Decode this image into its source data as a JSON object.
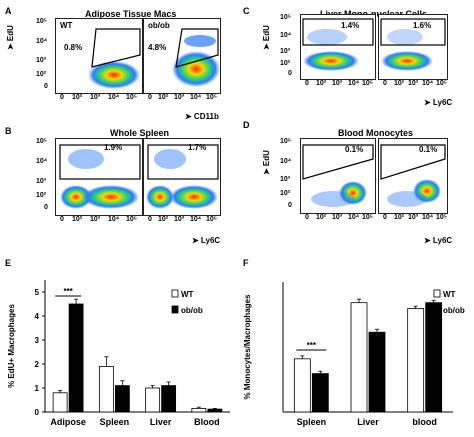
{
  "panels": {
    "A": {
      "letter": "A",
      "title": "Adipose Tissue Macs",
      "ylabel": "➤ EdU",
      "xlabel": "➤ CD11b",
      "left_label": "WT",
      "right_label": "ob/ob",
      "left_pct": "0.8%",
      "right_pct": "4.8%",
      "yticks": [
        "10⁵",
        "10⁴",
        "10³",
        "10²",
        "0"
      ],
      "xticks": [
        "0",
        "10²",
        "10³",
        "10⁴",
        "10⁵"
      ]
    },
    "B": {
      "letter": "B",
      "title": "Whole Spleen",
      "xlabel": "➤ Ly6C",
      "left_pct": "1.9%",
      "right_pct": "1.7%",
      "yticks": [
        "10⁵",
        "10⁴",
        "10³",
        "10²",
        "0"
      ],
      "xticks": [
        "0",
        "10²",
        "10³",
        "10⁴",
        "10⁵"
      ]
    },
    "C": {
      "letter": "C",
      "title": "Liver Mono-nuclear Cells",
      "ylabel": "➤ EdU",
      "xlabel": "➤ Ly6C",
      "left_pct": "1.4%",
      "right_pct": "1.6%",
      "yticks": [
        "10⁵",
        "10⁴",
        "10³",
        "10²",
        "0"
      ],
      "xticks": [
        "0",
        "10²",
        "10³",
        "10⁴",
        "10⁵"
      ]
    },
    "D": {
      "letter": "D",
      "title": "Blood Monocytes",
      "ylabel": "➤ EdU",
      "xlabel": "➤ Ly6C",
      "left_pct": "0.1%",
      "right_pct": "0.1%",
      "yticks": [
        "10⁵",
        "10⁴",
        "10³",
        "10²",
        "0"
      ],
      "xticks": [
        "0",
        "10²",
        "10³",
        "10⁴",
        "10⁵"
      ]
    }
  },
  "chart_data": [
    {
      "panel": "E",
      "type": "bar",
      "ylabel": "% EdU+ Macrophages",
      "categories": [
        "Adipose",
        "Spleen",
        "Liver",
        "Blood"
      ],
      "yticks": [
        "0",
        "1",
        "2",
        "3",
        "4",
        "5"
      ],
      "ylim": [
        0,
        5.5
      ],
      "series": [
        {
          "name": "WT",
          "color": "#ffffff",
          "values": [
            0.8,
            1.9,
            1.0,
            0.15
          ],
          "errors": [
            0.1,
            0.4,
            0.1,
            0.05
          ]
        },
        {
          "name": "ob/ob",
          "color": "#000000",
          "values": [
            4.5,
            1.1,
            1.1,
            0.12
          ],
          "errors": [
            0.2,
            0.2,
            0.15,
            0.03
          ]
        }
      ],
      "significance": "***",
      "legend_position": "top-right"
    },
    {
      "panel": "F",
      "type": "bar",
      "ylabel": "% Monocytes/Macrophages",
      "categories": [
        "Spleen",
        "Liver",
        "blood"
      ],
      "yticks": [],
      "ylim": [
        0,
        22
      ],
      "series": [
        {
          "name": "WT",
          "color": "#ffffff",
          "values": [
            9,
            18.5,
            17.5
          ],
          "errors": [
            0.5,
            0.6,
            0.4
          ]
        },
        {
          "name": "ob/ob",
          "color": "#000000",
          "values": [
            6.5,
            13.5,
            18.5
          ],
          "errors": [
            0.4,
            0.5,
            0.4
          ]
        }
      ],
      "significance": "***",
      "legend_position": "top-right"
    }
  ],
  "panel_letters": {
    "E": "E",
    "F": "F"
  }
}
